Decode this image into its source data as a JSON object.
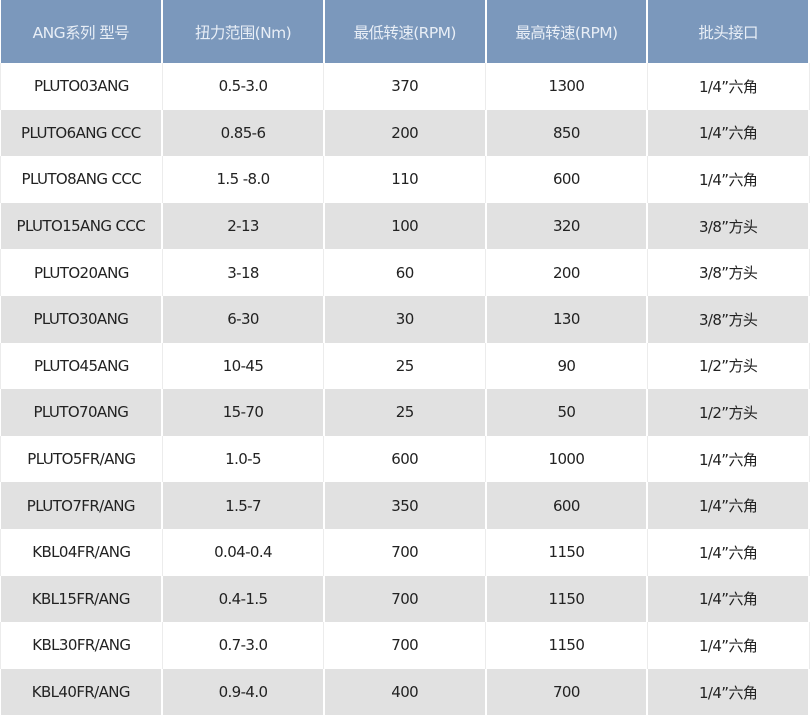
{
  "headers": [
    "ANG系列 型号",
    "扭力范围(Nm)",
    "最低转速(RPM)",
    "最高转速(RPM)",
    "批头接口"
  ],
  "rows": [
    [
      "PLUTO03ANG",
      "0.5-3.0",
      "370",
      "1300",
      "1/4”六角"
    ],
    [
      "PLUTO6ANG CCC",
      "0.85-6",
      "200",
      "850",
      "1/4”六角"
    ],
    [
      "PLUTO8ANG CCC",
      "1.5 -8.0",
      "110",
      "600",
      "1/4”六角"
    ],
    [
      "PLUTO15ANG CCC",
      "2-13",
      "100",
      "320",
      "3/8”方头"
    ],
    [
      "PLUTO20ANG",
      "3-18",
      "60",
      "200",
      "3/8”方头"
    ],
    [
      "PLUTO30ANG",
      "6-30",
      "30",
      "130",
      "3/8”方头"
    ],
    [
      "PLUTO45ANG",
      "10-45",
      "25",
      "90",
      "1/2”方头"
    ],
    [
      "PLUTO70ANG",
      "15-70",
      "25",
      "50",
      "1/2”方头"
    ],
    [
      "PLUTO5FR/ANG",
      "1.0-5",
      "600",
      "1000",
      "1/4”六角"
    ],
    [
      "PLUTO7FR/ANG",
      "1.5-7",
      "350",
      "600",
      "1/4”六角"
    ],
    [
      "KBL04FR/ANG",
      "0.04-0.4",
      "700",
      "1150",
      "1/4”六角"
    ],
    [
      "KBL15FR/ANG",
      "0.4-1.5",
      "700",
      "1150",
      "1/4”六角"
    ],
    [
      "KBL30FR/ANG",
      "0.7-3.0",
      "700",
      "1150",
      "1/4”六角"
    ],
    [
      "KBL40FR/ANG",
      "0.9-4.0",
      "400",
      "700",
      "1/4”六角"
    ]
  ],
  "colors": {
    "header_bg": "#7b98bc",
    "alt_row_bg": "#e1e1e1"
  }
}
